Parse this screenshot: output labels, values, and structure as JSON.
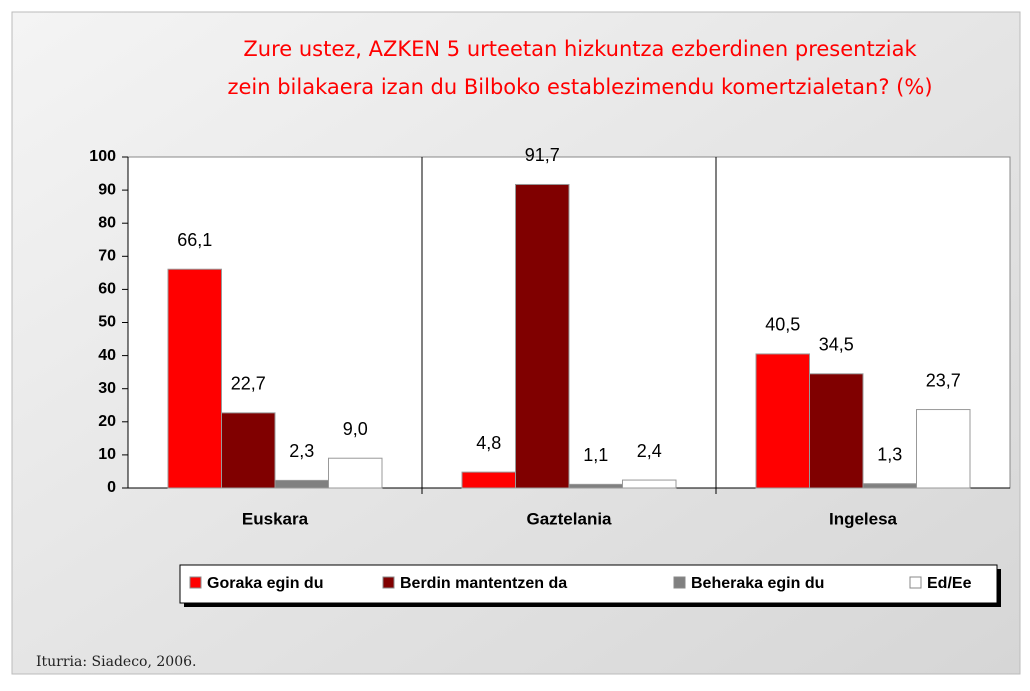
{
  "chart_data": {
    "type": "bar",
    "title": [
      "Zure ustez, AZKEN 5 urteetan hizkuntza ezberdinen presentziak",
      "zein bilakaera izan du Bilboko establezimendu komertzialetan?  (%)"
    ],
    "categories": [
      "Euskara",
      "Gaztelania",
      "Ingelesa"
    ],
    "series": [
      {
        "name": "Goraka egin du",
        "color": "#ff0000",
        "values": [
          66.1,
          4.8,
          40.5
        ],
        "value_labels": [
          "66,1",
          "4,8",
          "40,5"
        ]
      },
      {
        "name": "Berdin mantentzen da",
        "color": "#800000",
        "values": [
          22.7,
          91.7,
          34.5
        ],
        "value_labels": [
          "22,7",
          "91,7",
          "34,5"
        ]
      },
      {
        "name": "Beheraka egin du",
        "color": "#808080",
        "values": [
          2.3,
          1.1,
          1.3
        ],
        "value_labels": [
          "2,3",
          "1,1",
          "1,3"
        ]
      },
      {
        "name": "Ed/Ee",
        "color": "#ffffff",
        "values": [
          9.0,
          2.4,
          23.7
        ],
        "value_labels": [
          "9,0",
          "2,4",
          "23,7"
        ]
      }
    ],
    "ylim": [
      0,
      100
    ],
    "yticks": [
      0,
      10,
      20,
      30,
      40,
      50,
      60,
      70,
      80,
      90,
      100
    ],
    "legend": "bottom",
    "source": "Iturria: Siadeco, 2006."
  }
}
